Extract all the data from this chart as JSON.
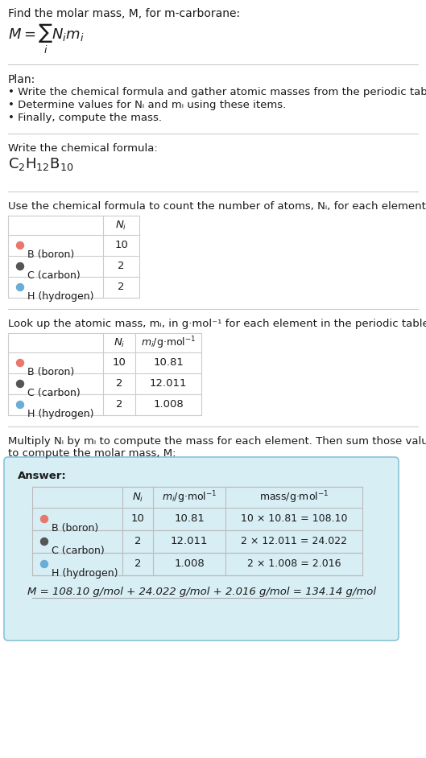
{
  "title_text": "Find the molar mass, M, for m-carborane:",
  "bg_color": "#ffffff",
  "section_bg_answer": "#d8eef5",
  "plan_header": "Plan:",
  "plan_bullets": [
    "• Write the chemical formula and gather atomic masses from the periodic table.",
    "• Determine values for Nᵢ and mᵢ using these items.",
    "• Finally, compute the mass."
  ],
  "formula_section_header": "Write the chemical formula:",
  "table1_header": "Use the chemical formula to count the number of atoms, Nᵢ, for each element:",
  "table2_header": "Look up the atomic mass, mᵢ, in g·mol⁻¹ for each element in the periodic table:",
  "answer_header": "Answer:",
  "elements": [
    {
      "symbol": "B",
      "name": "boron",
      "color": "#e8786a",
      "filled": true,
      "Ni": 10,
      "mi": "10.81",
      "mass_str": "10 × 10.81 = 108.10"
    },
    {
      "symbol": "C",
      "name": "carbon",
      "color": "#555555",
      "filled": true,
      "Ni": 2,
      "mi": "12.011",
      "mass_str": "2 × 12.011 = 24.022"
    },
    {
      "symbol": "H",
      "name": "hydrogen",
      "color": "#6aadd5",
      "filled": false,
      "Ni": 2,
      "mi": "1.008",
      "mass_str": "2 × 1.008 = 2.016"
    }
  ],
  "final_eq": "M = 108.10 g/mol + 24.022 g/mol + 2.016 g/mol = 134.14 g/mol",
  "multiply_header1": "Multiply Nᵢ by mᵢ to compute the mass for each element. Then sum those values",
  "multiply_header2": "to compute the molar mass, M:"
}
